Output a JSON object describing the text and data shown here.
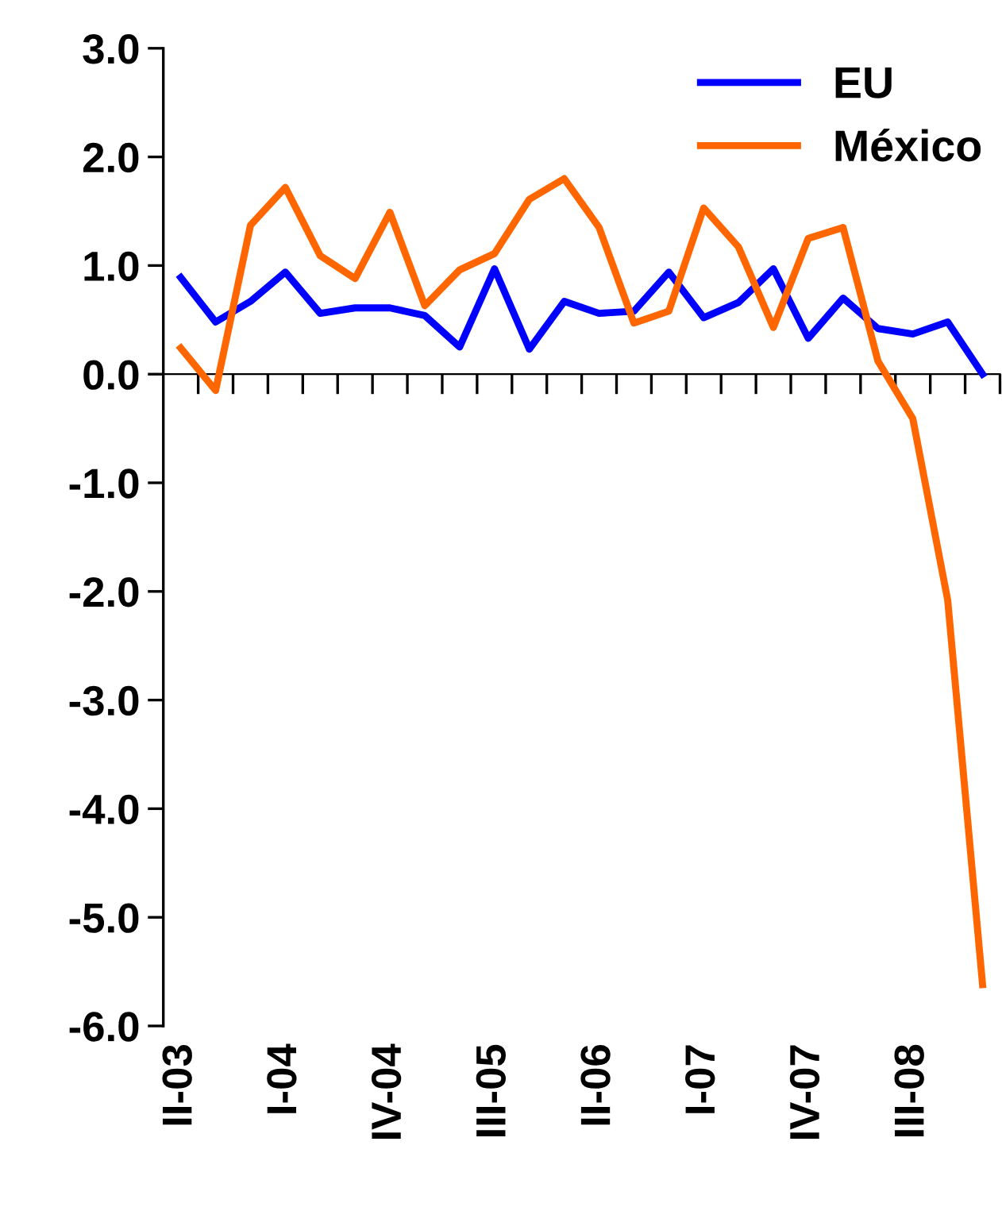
{
  "chart_data": {
    "type": "line",
    "categories": [
      "II-03",
      null,
      null,
      "I-04",
      null,
      null,
      "IV-04",
      null,
      null,
      "III-05",
      null,
      null,
      "II-06",
      null,
      null,
      "I-07",
      null,
      null,
      "IV-07",
      null,
      null,
      "III-08",
      null,
      null
    ],
    "series": [
      {
        "name": "EU",
        "color": "#0000ff",
        "values": [
          0.89,
          0.48,
          0.67,
          0.94,
          0.56,
          0.61,
          0.61,
          0.54,
          0.25,
          0.97,
          0.23,
          0.67,
          0.56,
          0.58,
          0.94,
          0.52,
          0.66,
          0.97,
          0.33,
          0.7,
          0.42,
          0.37,
          0.48,
          0.0
        ]
      },
      {
        "name": "México",
        "color": "#ff6600",
        "values": [
          0.24,
          -0.15,
          1.37,
          1.72,
          1.09,
          0.88,
          1.49,
          0.63,
          0.96,
          1.11,
          1.61,
          1.8,
          1.35,
          0.47,
          0.58,
          1.53,
          1.17,
          0.43,
          1.25,
          1.35,
          0.12,
          -0.41,
          -2.08,
          -5.62
        ]
      }
    ],
    "ylim": [
      -6,
      3
    ],
    "yticks": [
      {
        "value": -6,
        "label": "-6.0"
      },
      {
        "value": -5,
        "label": "-5.0"
      },
      {
        "value": -4,
        "label": "-4.0"
      },
      {
        "value": -3,
        "label": "-3.0"
      },
      {
        "value": -2,
        "label": "-2.0"
      },
      {
        "value": -1,
        "label": "-1.0"
      },
      {
        "value": 0,
        "label": "0.0"
      },
      {
        "value": 1,
        "label": "1.0"
      },
      {
        "value": 2,
        "label": "2.0"
      },
      {
        "value": 3,
        "label": "3.0"
      }
    ],
    "legend": "top right",
    "marker": "none",
    "line_style": "solid"
  }
}
